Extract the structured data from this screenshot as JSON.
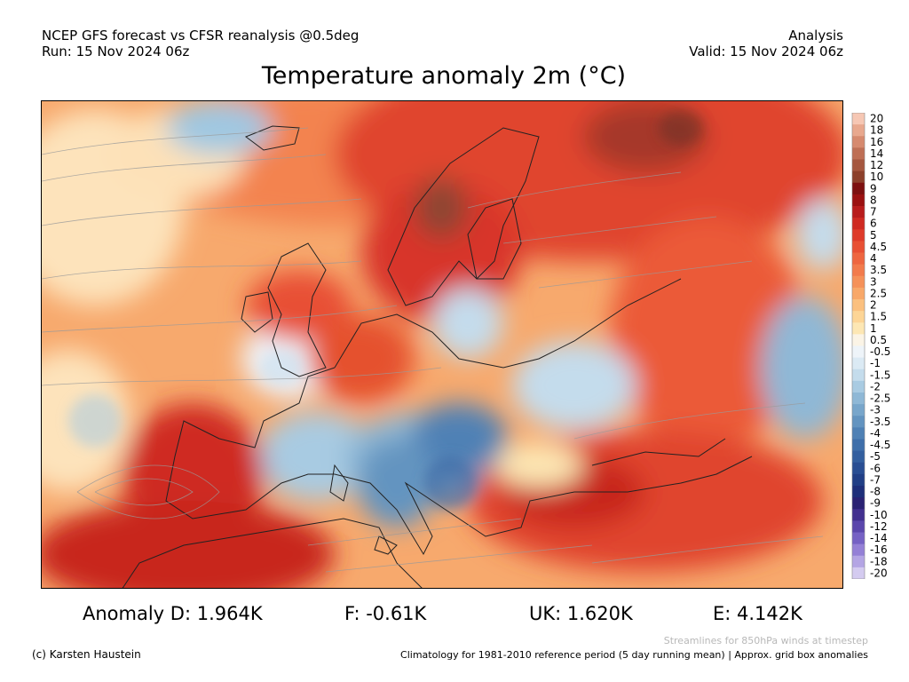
{
  "header": {
    "left_line1": "NCEP GFS forecast vs CFSR reanalysis @0.5deg",
    "left_line2": "Run: 15 Nov 2024 06z",
    "right_line1": "Analysis",
    "right_line2": "Valid: 15 Nov 2024 06z"
  },
  "title": "Temperature anomaly 2m (°C)",
  "legend": {
    "labels": [
      "20",
      "18",
      "16",
      "14",
      "12",
      "10",
      "9",
      "8",
      "7",
      "6",
      "5",
      "4.5",
      "4",
      "3.5",
      "3",
      "2.5",
      "2",
      "1.5",
      "1",
      "0.5",
      "-0.5",
      "-1",
      "-1.5",
      "-2",
      "-2.5",
      "-3",
      "-3.5",
      "-4",
      "-4.5",
      "-5",
      "-6",
      "-7",
      "-8",
      "-9",
      "-10",
      "-12",
      "-14",
      "-16",
      "-18",
      "-20"
    ],
    "colors": [
      "#f6c7b4",
      "#e8a88e",
      "#d68a6f",
      "#be6f55",
      "#a5573f",
      "#8c402b",
      "#7d1010",
      "#9b1111",
      "#b81c1c",
      "#cf2a22",
      "#de3b2a",
      "#e85034",
      "#ee6640",
      "#f27b4c",
      "#f59159",
      "#f8a869",
      "#fbc07f",
      "#fdd596",
      "#fde7b4",
      "#fbf4e6",
      "#eef4f9",
      "#dbeaf4",
      "#c4dcec",
      "#a9cbe2",
      "#8fb8d6",
      "#78a6cb",
      "#6394c0",
      "#4f81b5",
      "#3f6faa",
      "#335f9f",
      "#294e93",
      "#213f86",
      "#1e2f7a",
      "#2a2273",
      "#42308f",
      "#5a46ac",
      "#7561c4",
      "#9480d6",
      "#b4a5e4",
      "#d4cbf0"
    ]
  },
  "stats": {
    "anomaly_d": "Anomaly D: 1.964K",
    "f": "F: -0.61K",
    "uk": "UK: 1.620K",
    "e": "E: 4.142K"
  },
  "footer": {
    "credit": "(c) Karsten Haustein",
    "streamlines_note": "Streamlines for 850hPa winds at timestep",
    "climatology_note": "Climatology for 1981-2010 reference period (5 day running mean) | Approx. grid box anomalies"
  }
}
